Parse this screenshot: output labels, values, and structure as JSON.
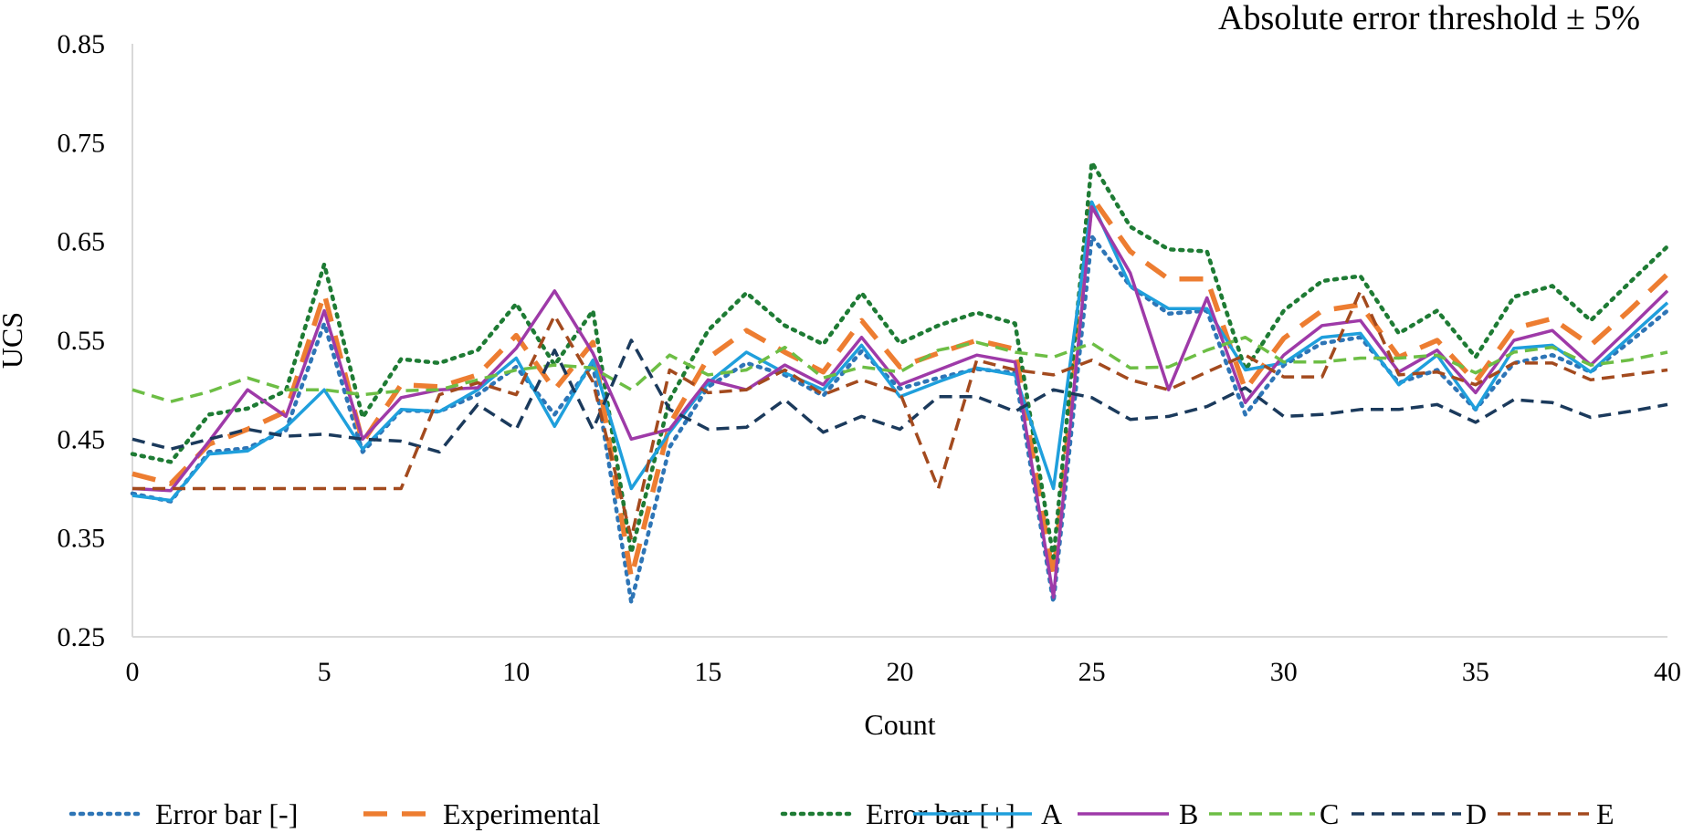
{
  "chart_data": {
    "type": "line",
    "title": "",
    "annotation": "Absolute error threshold ± 5%",
    "xlabel": "Count",
    "ylabel": "UCS",
    "xlim": [
      0,
      40
    ],
    "ylim": [
      0.25,
      0.85
    ],
    "xticks": [
      0,
      5,
      10,
      15,
      20,
      25,
      30,
      35,
      40
    ],
    "yticks": [
      0.25,
      0.35,
      0.45,
      0.55,
      0.65,
      0.75,
      0.85
    ],
    "xtick_labels": [
      "0",
      "5",
      "10",
      "15",
      "20",
      "25",
      "30",
      "35",
      "40"
    ],
    "ytick_labels": [
      "0.25",
      "0.35",
      "0.45",
      "0.55",
      "0.65",
      "0.75",
      "0.85"
    ],
    "grid": false,
    "legend_position": "bottom",
    "x": [
      0,
      1,
      2,
      3,
      4,
      5,
      6,
      7,
      8,
      9,
      10,
      11,
      12,
      13,
      14,
      15,
      16,
      17,
      18,
      19,
      20,
      21,
      22,
      23,
      24,
      25,
      26,
      27,
      28,
      29,
      30,
      31,
      32,
      33,
      34,
      35,
      36,
      37,
      38,
      39,
      40
    ],
    "series": [
      {
        "name": "Error bar [-]",
        "color": "#2E75B6",
        "dash": "dot",
        "values": [
          0.395,
          0.387,
          0.437,
          0.441,
          0.459,
          0.567,
          0.437,
          0.479,
          0.478,
          0.495,
          0.523,
          0.475,
          0.526,
          0.285,
          0.442,
          0.503,
          0.527,
          0.515,
          0.494,
          0.539,
          0.501,
          0.512,
          0.521,
          0.517,
          0.285,
          0.655,
          0.605,
          0.577,
          0.58,
          0.475,
          0.525,
          0.547,
          0.553,
          0.507,
          0.52,
          0.48,
          0.527,
          0.535,
          0.518,
          0.548,
          0.58
        ]
      },
      {
        "name": "Experimental",
        "color": "#ED7D31",
        "dash": "long-dash",
        "values": [
          0.415,
          0.405,
          0.445,
          0.46,
          0.478,
          0.597,
          0.447,
          0.505,
          0.503,
          0.515,
          0.555,
          0.5,
          0.548,
          0.31,
          0.465,
          0.532,
          0.56,
          0.538,
          0.518,
          0.57,
          0.523,
          0.537,
          0.55,
          0.541,
          0.31,
          0.695,
          0.64,
          0.612,
          0.612,
          0.5,
          0.552,
          0.58,
          0.586,
          0.533,
          0.55,
          0.508,
          0.562,
          0.572,
          0.545,
          0.58,
          0.617
        ]
      },
      {
        "name": "Error bar [+]",
        "color": "#1E7B34",
        "dash": "dot",
        "values": [
          0.435,
          0.427,
          0.475,
          0.481,
          0.499,
          0.627,
          0.472,
          0.531,
          0.527,
          0.54,
          0.587,
          0.525,
          0.58,
          0.335,
          0.49,
          0.56,
          0.598,
          0.565,
          0.546,
          0.598,
          0.547,
          0.565,
          0.578,
          0.567,
          0.33,
          0.73,
          0.665,
          0.642,
          0.64,
          0.52,
          0.58,
          0.61,
          0.615,
          0.557,
          0.58,
          0.533,
          0.594,
          0.605,
          0.57,
          0.608,
          0.645
        ]
      },
      {
        "name": "A",
        "color": "#1F9FDC",
        "dash": "solid",
        "values": [
          0.393,
          0.388,
          0.435,
          0.438,
          0.462,
          0.5,
          0.44,
          0.48,
          0.478,
          0.5,
          0.532,
          0.463,
          0.53,
          0.4,
          0.457,
          0.507,
          0.538,
          0.517,
          0.5,
          0.545,
          0.493,
          0.508,
          0.522,
          0.515,
          0.4,
          0.69,
          0.605,
          0.582,
          0.582,
          0.52,
          0.527,
          0.553,
          0.557,
          0.505,
          0.535,
          0.48,
          0.542,
          0.545,
          0.518,
          0.553,
          0.588
        ]
      },
      {
        "name": "B",
        "color": "#9E3AA8",
        "dash": "solid",
        "values": [
          0.4,
          0.398,
          0.448,
          0.5,
          0.473,
          0.58,
          0.45,
          0.492,
          0.5,
          0.502,
          0.542,
          0.6,
          0.537,
          0.45,
          0.46,
          0.51,
          0.5,
          0.525,
          0.505,
          0.553,
          0.505,
          0.52,
          0.535,
          0.528,
          0.29,
          0.685,
          0.618,
          0.5,
          0.593,
          0.487,
          0.535,
          0.565,
          0.57,
          0.518,
          0.54,
          0.497,
          0.55,
          0.56,
          0.525,
          0.562,
          0.6
        ]
      },
      {
        "name": "C",
        "color": "#6DBE45",
        "dash": "dash",
        "values": [
          0.5,
          0.488,
          0.498,
          0.512,
          0.5,
          0.5,
          0.495,
          0.499,
          0.5,
          0.51,
          0.52,
          0.525,
          0.522,
          0.5,
          0.535,
          0.515,
          0.52,
          0.543,
          0.512,
          0.523,
          0.518,
          0.54,
          0.548,
          0.538,
          0.533,
          0.547,
          0.522,
          0.523,
          0.54,
          0.553,
          0.528,
          0.528,
          0.532,
          0.532,
          0.535,
          0.517,
          0.538,
          0.543,
          0.525,
          0.53,
          0.538
        ]
      },
      {
        "name": "D",
        "color": "#1B3A5C",
        "dash": "dash",
        "values": [
          0.45,
          0.44,
          0.45,
          0.46,
          0.453,
          0.455,
          0.45,
          0.448,
          0.437,
          0.485,
          0.46,
          0.54,
          0.46,
          0.55,
          0.48,
          0.46,
          0.462,
          0.49,
          0.457,
          0.473,
          0.46,
          0.493,
          0.493,
          0.478,
          0.5,
          0.492,
          0.47,
          0.473,
          0.483,
          0.502,
          0.473,
          0.475,
          0.48,
          0.48,
          0.485,
          0.467,
          0.49,
          0.487,
          0.472,
          0.478,
          0.485
        ]
      },
      {
        "name": "E",
        "color": "#A34A1E",
        "dash": "dash",
        "values": [
          0.4,
          0.4,
          0.4,
          0.4,
          0.4,
          0.4,
          0.4,
          0.4,
          0.495,
          0.507,
          0.495,
          0.575,
          0.508,
          0.35,
          0.52,
          0.497,
          0.5,
          0.52,
          0.495,
          0.51,
          0.497,
          0.4,
          0.53,
          0.52,
          0.515,
          0.53,
          0.51,
          0.5,
          0.518,
          0.535,
          0.513,
          0.513,
          0.6,
          0.515,
          0.518,
          0.505,
          0.527,
          0.527,
          0.51,
          0.515,
          0.52
        ]
      }
    ]
  }
}
